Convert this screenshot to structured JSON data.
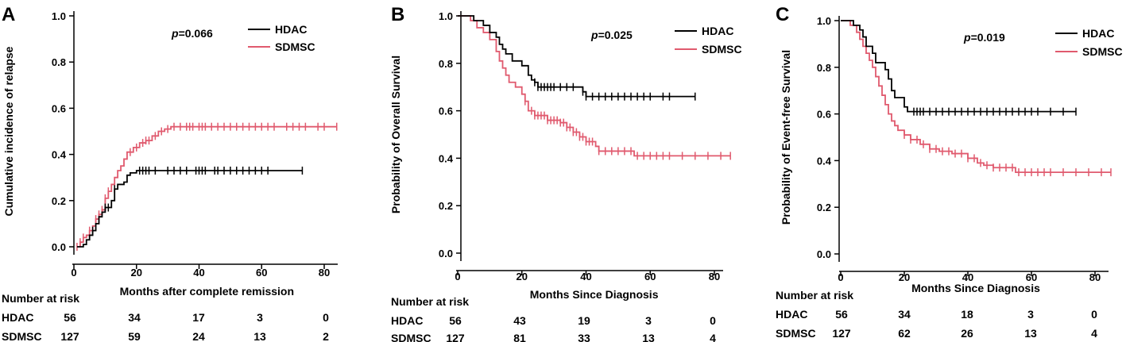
{
  "colors": {
    "hdac": "#000000",
    "sdmsc": "#e05a6e"
  },
  "chart_data": [
    {
      "type": "line",
      "panel": "A",
      "ylabel": "Cumulative incidence of relapse",
      "xlabel": "Months after complete remission",
      "pvalue_prefix": "p",
      "pvalue_suffix": "=0.066",
      "xlim": [
        0,
        85
      ],
      "ylim": [
        0,
        1
      ],
      "x_ticks": [
        "0",
        "20",
        "40",
        "60",
        "80"
      ],
      "y_ticks": [
        "0.0",
        "0.2",
        "0.4",
        "0.6",
        "0.8",
        "1.0"
      ],
      "legend": [
        "HDAC",
        "SDMSC"
      ],
      "series": [
        {
          "name": "HDAC",
          "steps": [
            [
              1,
              0
            ],
            [
              3,
              0.01
            ],
            [
              4,
              0.03
            ],
            [
              5,
              0.05
            ],
            [
              6,
              0.07
            ],
            [
              7,
              0.1
            ],
            [
              8,
              0.13
            ],
            [
              9,
              0.15
            ],
            [
              10,
              0.17
            ],
            [
              12,
              0.2
            ],
            [
              13,
              0.25
            ],
            [
              14,
              0.27
            ],
            [
              16,
              0.28
            ],
            [
              17,
              0.31
            ],
            [
              18,
              0.32
            ],
            [
              20,
              0.33
            ],
            [
              73,
              0.33
            ]
          ],
          "censors": [
            6,
            10,
            11,
            13,
            21,
            22,
            23,
            24,
            26,
            30,
            32,
            34,
            36,
            39,
            40,
            41,
            42,
            45,
            46,
            48,
            50,
            52,
            54,
            56,
            58,
            60,
            62,
            73
          ]
        },
        {
          "name": "SDMSC",
          "steps": [
            [
              1,
              0
            ],
            [
              2,
              0.02
            ],
            [
              3,
              0.04
            ],
            [
              4,
              0.05
            ],
            [
              5,
              0.07
            ],
            [
              6,
              0.09
            ],
            [
              7,
              0.12
            ],
            [
              8,
              0.14
            ],
            [
              9,
              0.16
            ],
            [
              10,
              0.21
            ],
            [
              11,
              0.24
            ],
            [
              12,
              0.27
            ],
            [
              13,
              0.3
            ],
            [
              14,
              0.33
            ],
            [
              15,
              0.35
            ],
            [
              16,
              0.38
            ],
            [
              17,
              0.41
            ],
            [
              19,
              0.43
            ],
            [
              21,
              0.45
            ],
            [
              23,
              0.46
            ],
            [
              25,
              0.48
            ],
            [
              27,
              0.5
            ],
            [
              29,
              0.51
            ],
            [
              31,
              0.52
            ],
            [
              84,
              0.52
            ]
          ],
          "censors": [
            1,
            2,
            3,
            5,
            7,
            8,
            9,
            10,
            11,
            18,
            20,
            22,
            23,
            24,
            26,
            28,
            30,
            32,
            34,
            36,
            37,
            38,
            40,
            41,
            42,
            44,
            46,
            48,
            50,
            52,
            54,
            56,
            58,
            60,
            62,
            64,
            68,
            70,
            72,
            74,
            78,
            80,
            84
          ]
        }
      ],
      "risk_title": "Number at risk",
      "risk_rows": [
        {
          "label": "HDAC",
          "values": [
            "56",
            "34",
            "17",
            "3",
            "0"
          ]
        },
        {
          "label": "SDMSC",
          "values": [
            "127",
            "59",
            "24",
            "13",
            "2"
          ]
        }
      ]
    },
    {
      "type": "line",
      "panel": "B",
      "ylabel": "Probability of Overall Survival",
      "xlabel": "Months Since Diagnosis",
      "pvalue_prefix": "p",
      "pvalue_suffix": "=0.025",
      "xlim": [
        0,
        85
      ],
      "ylim": [
        0,
        1
      ],
      "x_ticks": [
        "0",
        "20",
        "40",
        "60",
        "80"
      ],
      "y_ticks": [
        "0.0",
        "0.2",
        "0.4",
        "0.6",
        "0.8",
        "1.0"
      ],
      "legend": [
        "HDAC",
        "SDMSC"
      ],
      "series": [
        {
          "name": "HDAC",
          "steps": [
            [
              0,
              1
            ],
            [
              5,
              0.98
            ],
            [
              8,
              0.96
            ],
            [
              10,
              0.93
            ],
            [
              12,
              0.91
            ],
            [
              13,
              0.88
            ],
            [
              14,
              0.86
            ],
            [
              15,
              0.84
            ],
            [
              17,
              0.81
            ],
            [
              20,
              0.79
            ],
            [
              22,
              0.75
            ],
            [
              23,
              0.73
            ],
            [
              24,
              0.72
            ],
            [
              25,
              0.7
            ],
            [
              39,
              0.68
            ],
            [
              40,
              0.66
            ],
            [
              74,
              0.66
            ]
          ],
          "censors": [
            24,
            25,
            26,
            27,
            28,
            29,
            30,
            32,
            34,
            36,
            39,
            40,
            42,
            44,
            46,
            48,
            50,
            52,
            54,
            56,
            58,
            60,
            64,
            66,
            74
          ]
        },
        {
          "name": "SDMSC",
          "steps": [
            [
              0,
              1
            ],
            [
              4,
              0.98
            ],
            [
              6,
              0.95
            ],
            [
              8,
              0.93
            ],
            [
              10,
              0.9
            ],
            [
              12,
              0.85
            ],
            [
              13,
              0.81
            ],
            [
              14,
              0.78
            ],
            [
              15,
              0.75
            ],
            [
              16,
              0.72
            ],
            [
              18,
              0.7
            ],
            [
              20,
              0.67
            ],
            [
              21,
              0.64
            ],
            [
              22,
              0.6
            ],
            [
              24,
              0.58
            ],
            [
              28,
              0.56
            ],
            [
              32,
              0.55
            ],
            [
              34,
              0.53
            ],
            [
              36,
              0.51
            ],
            [
              38,
              0.49
            ],
            [
              40,
              0.47
            ],
            [
              43,
              0.45
            ],
            [
              44,
              0.43
            ],
            [
              55,
              0.41
            ],
            [
              85,
              0.41
            ]
          ],
          "censors": [
            21,
            23,
            24,
            25,
            26,
            27,
            28,
            29,
            30,
            31,
            32,
            33,
            34,
            35,
            36,
            37,
            38,
            39,
            40,
            41,
            42,
            44,
            46,
            48,
            50,
            52,
            54,
            56,
            58,
            60,
            62,
            64,
            66,
            70,
            74,
            78,
            82,
            85
          ]
        }
      ],
      "risk_title": "Number at risk",
      "risk_rows": [
        {
          "label": "HDAC",
          "values": [
            "56",
            "43",
            "19",
            "3",
            "0"
          ]
        },
        {
          "label": "SDMSC",
          "values": [
            "127",
            "81",
            "33",
            "13",
            "4"
          ]
        }
      ]
    },
    {
      "type": "line",
      "panel": "C",
      "ylabel": "Probability of Event-free Survival",
      "xlabel": "Months Since Diagnosis",
      "pvalue_prefix": "p",
      "pvalue_suffix": "=0.019",
      "xlim": [
        0,
        85
      ],
      "ylim": [
        0,
        1
      ],
      "x_ticks": [
        "0",
        "20",
        "40",
        "60",
        "80"
      ],
      "y_ticks": [
        "0.0",
        "0.2",
        "0.4",
        "0.6",
        "0.8",
        "1.0"
      ],
      "legend": [
        "HDAC",
        "SDMSC"
      ],
      "series": [
        {
          "name": "HDAC",
          "steps": [
            [
              0,
              1
            ],
            [
              4,
              0.98
            ],
            [
              6,
              0.96
            ],
            [
              7,
              0.93
            ],
            [
              8,
              0.89
            ],
            [
              10,
              0.86
            ],
            [
              11,
              0.82
            ],
            [
              14,
              0.79
            ],
            [
              15,
              0.75
            ],
            [
              16,
              0.7
            ],
            [
              17,
              0.67
            ],
            [
              20,
              0.63
            ],
            [
              21,
              0.61
            ],
            [
              74,
              0.61
            ]
          ],
          "censors": [
            23,
            24,
            25,
            26,
            28,
            30,
            32,
            34,
            36,
            38,
            40,
            42,
            44,
            46,
            48,
            50,
            52,
            54,
            56,
            58,
            60,
            62,
            66,
            70,
            74
          ]
        },
        {
          "name": "SDMSC",
          "steps": [
            [
              0,
              1
            ],
            [
              3,
              0.98
            ],
            [
              5,
              0.95
            ],
            [
              6,
              0.92
            ],
            [
              7,
              0.89
            ],
            [
              8,
              0.86
            ],
            [
              9,
              0.83
            ],
            [
              10,
              0.8
            ],
            [
              11,
              0.76
            ],
            [
              12,
              0.72
            ],
            [
              13,
              0.68
            ],
            [
              14,
              0.64
            ],
            [
              15,
              0.6
            ],
            [
              16,
              0.57
            ],
            [
              17,
              0.55
            ],
            [
              18,
              0.53
            ],
            [
              20,
              0.51
            ],
            [
              22,
              0.49
            ],
            [
              25,
              0.47
            ],
            [
              28,
              0.45
            ],
            [
              31,
              0.44
            ],
            [
              35,
              0.43
            ],
            [
              40,
              0.41
            ],
            [
              43,
              0.39
            ],
            [
              45,
              0.38
            ],
            [
              48,
              0.37
            ],
            [
              55,
              0.35
            ],
            [
              85,
              0.35
            ]
          ],
          "censors": [
            20,
            22,
            24,
            26,
            28,
            30,
            32,
            34,
            36,
            38,
            40,
            42,
            44,
            46,
            48,
            50,
            52,
            54,
            56,
            58,
            60,
            62,
            64,
            66,
            70,
            74,
            78,
            82,
            85
          ]
        }
      ],
      "risk_title": "Number at risk",
      "risk_rows": [
        {
          "label": "HDAC",
          "values": [
            "56",
            "34",
            "18",
            "3",
            "0"
          ]
        },
        {
          "label": "SDMSC",
          "values": [
            "127",
            "62",
            "26",
            "13",
            "4"
          ]
        }
      ]
    }
  ]
}
